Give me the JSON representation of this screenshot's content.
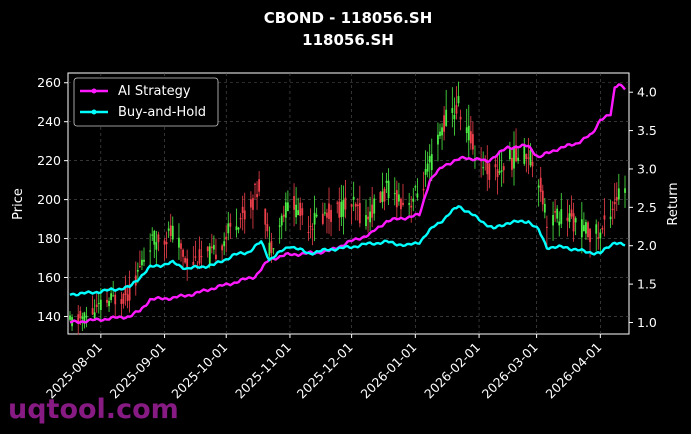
{
  "chart_data": {
    "type": "line",
    "title": "CBOND - 118056.SH",
    "subtitle": "118056.SH",
    "ylabel": "Price",
    "y2label": "Return",
    "ylim": [
      131,
      265
    ],
    "y2lim": [
      0.85,
      4.25
    ],
    "yticks": [
      140,
      160,
      180,
      200,
      220,
      240,
      260
    ],
    "y2ticks": [
      "1.0",
      "1.5",
      "2.0",
      "2.5",
      "3.0",
      "3.5",
      "4.0"
    ],
    "xticks": [
      "2025-08-01",
      "2025-09-01",
      "2025-10-01",
      "2025-11-01",
      "2025-12-01",
      "2026-01-01",
      "2026-02-01",
      "2026-03-01",
      "2026-04-01"
    ],
    "x_start": "2025-07-17",
    "x_end": "2026-04-13",
    "grid": true,
    "legend_position": "top-left",
    "colors": {
      "up": "#4cf046",
      "down": "#f0404c",
      "ai": "#ff19ff",
      "bh": "#00ffff"
    },
    "series": [
      {
        "name": "AI Strategy",
        "axis": "right",
        "points": [
          [
            "2025-07-17",
            1.0
          ],
          [
            "2025-07-25",
            1.02
          ],
          [
            "2025-08-05",
            1.05
          ],
          [
            "2025-08-15",
            1.08
          ],
          [
            "2025-08-20",
            1.15
          ],
          [
            "2025-08-25",
            1.3
          ],
          [
            "2025-09-05",
            1.32
          ],
          [
            "2025-09-15",
            1.37
          ],
          [
            "2025-09-25",
            1.45
          ],
          [
            "2025-10-05",
            1.52
          ],
          [
            "2025-10-15",
            1.6
          ],
          [
            "2025-10-22",
            1.82
          ],
          [
            "2025-10-30",
            1.88
          ],
          [
            "2025-11-10",
            1.9
          ],
          [
            "2025-11-20",
            1.93
          ],
          [
            "2025-11-30",
            2.05
          ],
          [
            "2025-12-10",
            2.15
          ],
          [
            "2025-12-18",
            2.32
          ],
          [
            "2025-12-28",
            2.37
          ],
          [
            "2026-01-03",
            2.4
          ],
          [
            "2026-01-08",
            2.85
          ],
          [
            "2026-01-15",
            3.05
          ],
          [
            "2026-01-25",
            3.15
          ],
          [
            "2026-02-05",
            3.1
          ],
          [
            "2026-02-15",
            3.28
          ],
          [
            "2026-02-25",
            3.3
          ],
          [
            "2026-03-02",
            3.15
          ],
          [
            "2026-03-10",
            3.25
          ],
          [
            "2026-03-20",
            3.33
          ],
          [
            "2026-03-28",
            3.45
          ],
          [
            "2026-04-01",
            3.65
          ],
          [
            "2026-04-06",
            3.7
          ],
          [
            "2026-04-08",
            4.05
          ],
          [
            "2026-04-10",
            4.12
          ],
          [
            "2026-04-13",
            4.05
          ]
        ]
      },
      {
        "name": "Buy-and-Hold",
        "axis": "right",
        "points": [
          [
            "2025-07-17",
            1.37
          ],
          [
            "2025-07-25",
            1.38
          ],
          [
            "2025-08-05",
            1.42
          ],
          [
            "2025-08-15",
            1.46
          ],
          [
            "2025-08-25",
            1.72
          ],
          [
            "2025-09-05",
            1.78
          ],
          [
            "2025-09-12",
            1.7
          ],
          [
            "2025-09-25",
            1.75
          ],
          [
            "2025-10-05",
            1.88
          ],
          [
            "2025-10-12",
            1.92
          ],
          [
            "2025-10-18",
            2.05
          ],
          [
            "2025-10-22",
            1.82
          ],
          [
            "2025-11-01",
            2.0
          ],
          [
            "2025-11-10",
            1.9
          ],
          [
            "2025-11-20",
            1.95
          ],
          [
            "2025-11-30",
            1.98
          ],
          [
            "2025-12-08",
            2.02
          ],
          [
            "2025-12-18",
            2.05
          ],
          [
            "2025-12-28",
            2.0
          ],
          [
            "2026-01-03",
            2.05
          ],
          [
            "2026-01-10",
            2.25
          ],
          [
            "2026-01-15",
            2.35
          ],
          [
            "2026-01-22",
            2.52
          ],
          [
            "2026-01-30",
            2.38
          ],
          [
            "2026-02-08",
            2.22
          ],
          [
            "2026-02-15",
            2.3
          ],
          [
            "2026-02-25",
            2.32
          ],
          [
            "2026-03-02",
            2.2
          ],
          [
            "2026-03-06",
            1.98
          ],
          [
            "2026-03-15",
            1.98
          ],
          [
            "2026-03-25",
            1.92
          ],
          [
            "2026-04-01",
            1.9
          ],
          [
            "2026-04-08",
            2.05
          ],
          [
            "2026-04-13",
            2.0
          ]
        ]
      }
    ],
    "price": [
      [
        "2025-07-17",
        137
      ],
      [
        "2025-07-25",
        140
      ],
      [
        "2025-08-05",
        148
      ],
      [
        "2025-08-15",
        152
      ],
      [
        "2025-08-25",
        178
      ],
      [
        "2025-09-05",
        183
      ],
      [
        "2025-09-12",
        168
      ],
      [
        "2025-09-25",
        172
      ],
      [
        "2025-10-05",
        188
      ],
      [
        "2025-10-12",
        195
      ],
      [
        "2025-10-18",
        210
      ],
      [
        "2025-10-22",
        175
      ],
      [
        "2025-11-01",
        200
      ],
      [
        "2025-11-10",
        188
      ],
      [
        "2025-11-20",
        193
      ],
      [
        "2025-11-30",
        198
      ],
      [
        "2025-12-08",
        190
      ],
      [
        "2025-12-18",
        205
      ],
      [
        "2025-12-28",
        198
      ],
      [
        "2026-01-03",
        204
      ],
      [
        "2026-01-10",
        222
      ],
      [
        "2026-01-15",
        240
      ],
      [
        "2026-01-22",
        248
      ],
      [
        "2026-01-30",
        225
      ],
      [
        "2026-02-08",
        212
      ],
      [
        "2026-02-15",
        220
      ],
      [
        "2026-02-25",
        225
      ],
      [
        "2026-03-02",
        212
      ],
      [
        "2026-03-06",
        190
      ],
      [
        "2026-03-15",
        192
      ],
      [
        "2026-03-25",
        184
      ],
      [
        "2026-04-01",
        182
      ],
      [
        "2026-04-08",
        200
      ],
      [
        "2026-04-13",
        205
      ]
    ]
  },
  "watermark": "uqtool.com"
}
